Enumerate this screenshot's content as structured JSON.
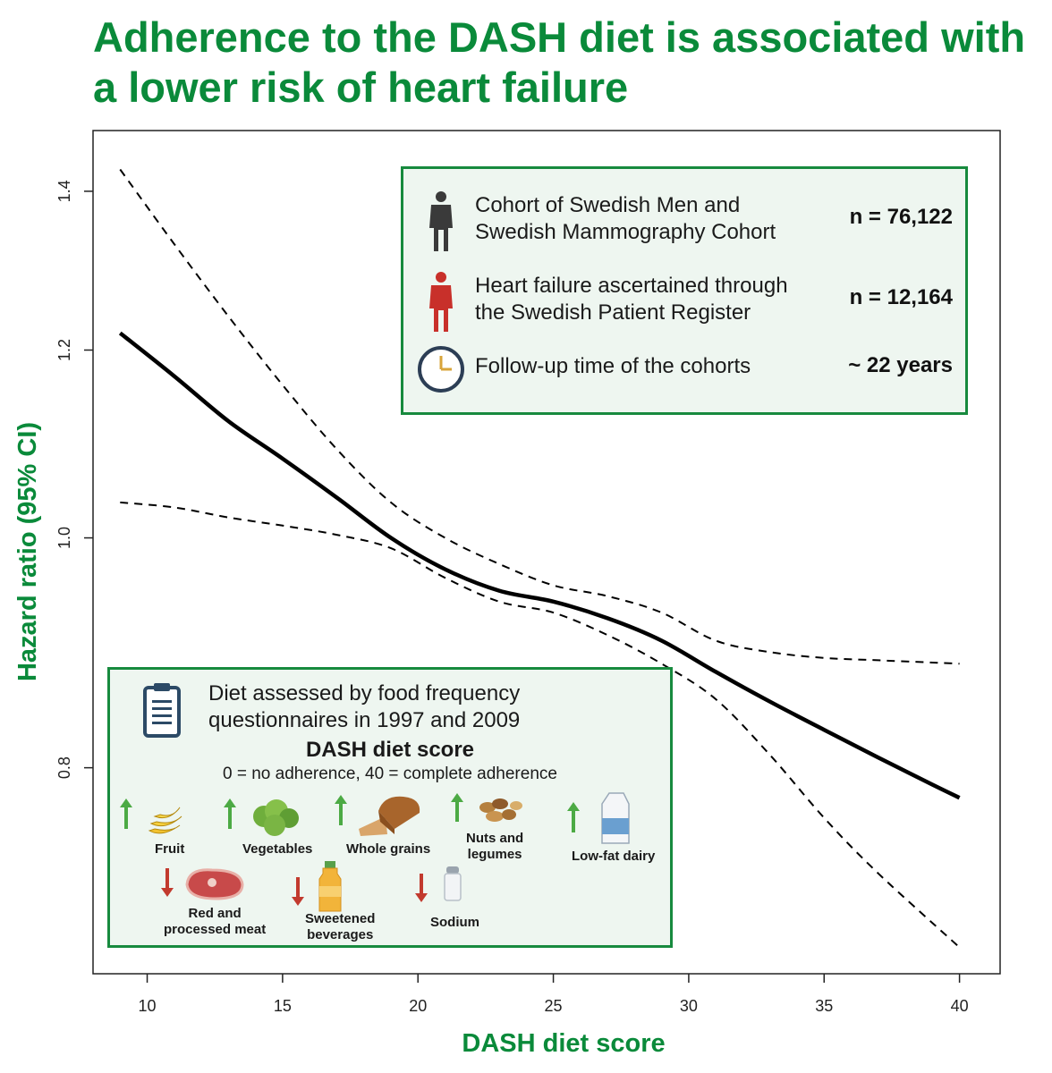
{
  "title": "Adherence to the DASH diet is associated with a lower risk of heart failure",
  "colors": {
    "title": "#0a8a3a",
    "panel_border": "#178a3e",
    "panel_bg": "#eef6f0",
    "up_arrow": "#4caa44",
    "down_arrow": "#c23a2e"
  },
  "chart_data": {
    "type": "line",
    "xlabel": "DASH diet score",
    "ylabel": "Hazard ratio (95% CI)",
    "xlim": [
      8,
      41.5
    ],
    "ylim": [
      0.655,
      1.485
    ],
    "y_scale": "log",
    "x_ticks": [
      10,
      15,
      20,
      25,
      30,
      35,
      40
    ],
    "x_tick_labels": [
      "10",
      "15",
      "20",
      "25",
      "30",
      "35",
      "40"
    ],
    "y_ticks": [
      0.8,
      1.0,
      1.2,
      1.4
    ],
    "y_tick_labels": [
      "0.8",
      "1.0",
      "1.2",
      "1.4"
    ],
    "series": [
      {
        "name": "Hazard ratio",
        "style": "solid",
        "x": [
          9,
          11,
          13,
          15,
          17,
          19,
          21,
          23,
          25,
          27,
          29,
          31,
          33,
          35,
          37,
          39,
          40
        ],
        "y": [
          1.22,
          1.17,
          1.12,
          1.08,
          1.04,
          1.0,
          0.97,
          0.95,
          0.94,
          0.925,
          0.905,
          0.878,
          0.853,
          0.83,
          0.808,
          0.787,
          0.777
        ]
      },
      {
        "name": "Upper 95% CI",
        "style": "dashed",
        "x": [
          9,
          11,
          13,
          15,
          17,
          19,
          21,
          23,
          25,
          27,
          29,
          31,
          33,
          35,
          37,
          40
        ],
        "y": [
          1.43,
          1.33,
          1.24,
          1.16,
          1.09,
          1.035,
          1.0,
          0.975,
          0.955,
          0.945,
          0.93,
          0.905,
          0.895,
          0.89,
          0.888,
          0.885
        ]
      },
      {
        "name": "Lower 95% CI",
        "style": "dashed",
        "x": [
          9,
          11,
          13,
          15,
          17,
          19,
          21,
          23,
          25,
          27,
          29,
          31,
          33,
          35,
          37,
          40
        ],
        "y": [
          1.035,
          1.03,
          1.02,
          1.012,
          1.003,
          0.99,
          0.962,
          0.94,
          0.93,
          0.91,
          0.885,
          0.855,
          0.81,
          0.762,
          0.722,
          0.672
        ]
      }
    ]
  },
  "stats_box": {
    "rows": [
      {
        "text_lines": [
          "Cohort of Swedish Men and",
          "Swedish Mammography Cohort"
        ],
        "value": "n = 76,122",
        "icon": "person-icon"
      },
      {
        "text_lines": [
          "Heart failure ascertained through",
          "the Swedish Patient Register"
        ],
        "value": "n = 12,164",
        "icon": "person-red-icon"
      },
      {
        "text_lines": [
          "Follow-up time of the cohorts"
        ],
        "value": "~ 22 years",
        "icon": "clock-icon"
      }
    ]
  },
  "diet_box": {
    "heading_lines": [
      "Diet assessed by food frequency",
      "questionnaires in 1997 and 2009"
    ],
    "score_title": "DASH diet score",
    "score_subtitle": "0 = no adherence, 40 = complete adherence",
    "increase_foods": [
      {
        "label_lines": [
          "Fruit"
        ],
        "icon": "banana-icon"
      },
      {
        "label_lines": [
          "Vegetables"
        ],
        "icon": "lettuce-icon"
      },
      {
        "label_lines": [
          "Whole grains"
        ],
        "icon": "bread-icon"
      },
      {
        "label_lines": [
          "Nuts and",
          "legumes"
        ],
        "icon": "nuts-icon"
      },
      {
        "label_lines": [
          "Low-fat dairy"
        ],
        "icon": "milk-icon"
      }
    ],
    "decrease_foods": [
      {
        "label_lines": [
          "Red and",
          "processed meat"
        ],
        "icon": "steak-icon"
      },
      {
        "label_lines": [
          "Sweetened",
          "beverages"
        ],
        "icon": "juice-bottle-icon"
      },
      {
        "label_lines": [
          "Sodium"
        ],
        "icon": "salt-shaker-icon"
      }
    ]
  }
}
